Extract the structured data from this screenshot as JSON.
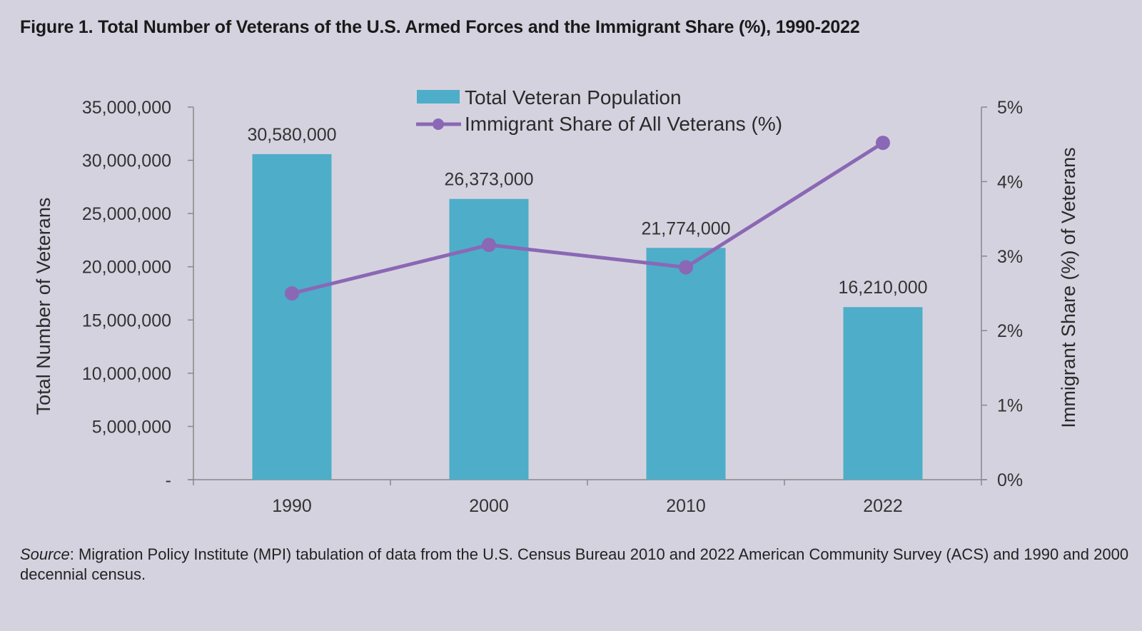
{
  "figure": {
    "title": "Figure 1. Total Number of Veterans of the U.S. Armed Forces and the Immigrant Share (%), 1990-2022"
  },
  "source": {
    "label": "Source",
    "text": ": Migration Policy Institute (MPI) tabulation of data from the U.S. Census Bureau 2010 and 2022 American Community Survey (ACS) and 1990 and 2000 decennial census."
  },
  "colors": {
    "background": "#d5d2df",
    "bar": "#4eadc9",
    "line": "#8a68b5",
    "axis": "#888888"
  },
  "chart_data": {
    "type": "bar",
    "categories": [
      "1990",
      "2000",
      "2010",
      "2022"
    ],
    "series": [
      {
        "name": "Total Veteran Population",
        "type": "bar",
        "axis": "left",
        "values": [
          30580000,
          26373000,
          21774000,
          16210000
        ],
        "labels": [
          "30,580,000",
          "26,373,000",
          "21,774,000",
          "16,210,000"
        ]
      },
      {
        "name": "Immigrant Share of All Veterans (%)",
        "type": "line",
        "axis": "right",
        "values": [
          2.5,
          3.15,
          2.85,
          4.52
        ]
      }
    ],
    "ylabel": "Total Number of Veterans",
    "ylim": [
      0,
      35000000
    ],
    "yticks": [
      0,
      5000000,
      10000000,
      15000000,
      20000000,
      25000000,
      30000000,
      35000000
    ],
    "ytick_labels": [
      "-",
      "5,000,000",
      "10,000,000",
      "15,000,000",
      "20,000,000",
      "25,000,000",
      "30,000,000",
      "35,000,000"
    ],
    "y2label": "Immigrant Share (%) of Veterans",
    "y2lim": [
      0,
      5
    ],
    "y2ticks": [
      0,
      1,
      2,
      3,
      4,
      5
    ],
    "y2tick_labels": [
      "0%",
      "1%",
      "2%",
      "3%",
      "4%",
      "5%"
    ],
    "legend_position": "top-center",
    "grid": false
  }
}
